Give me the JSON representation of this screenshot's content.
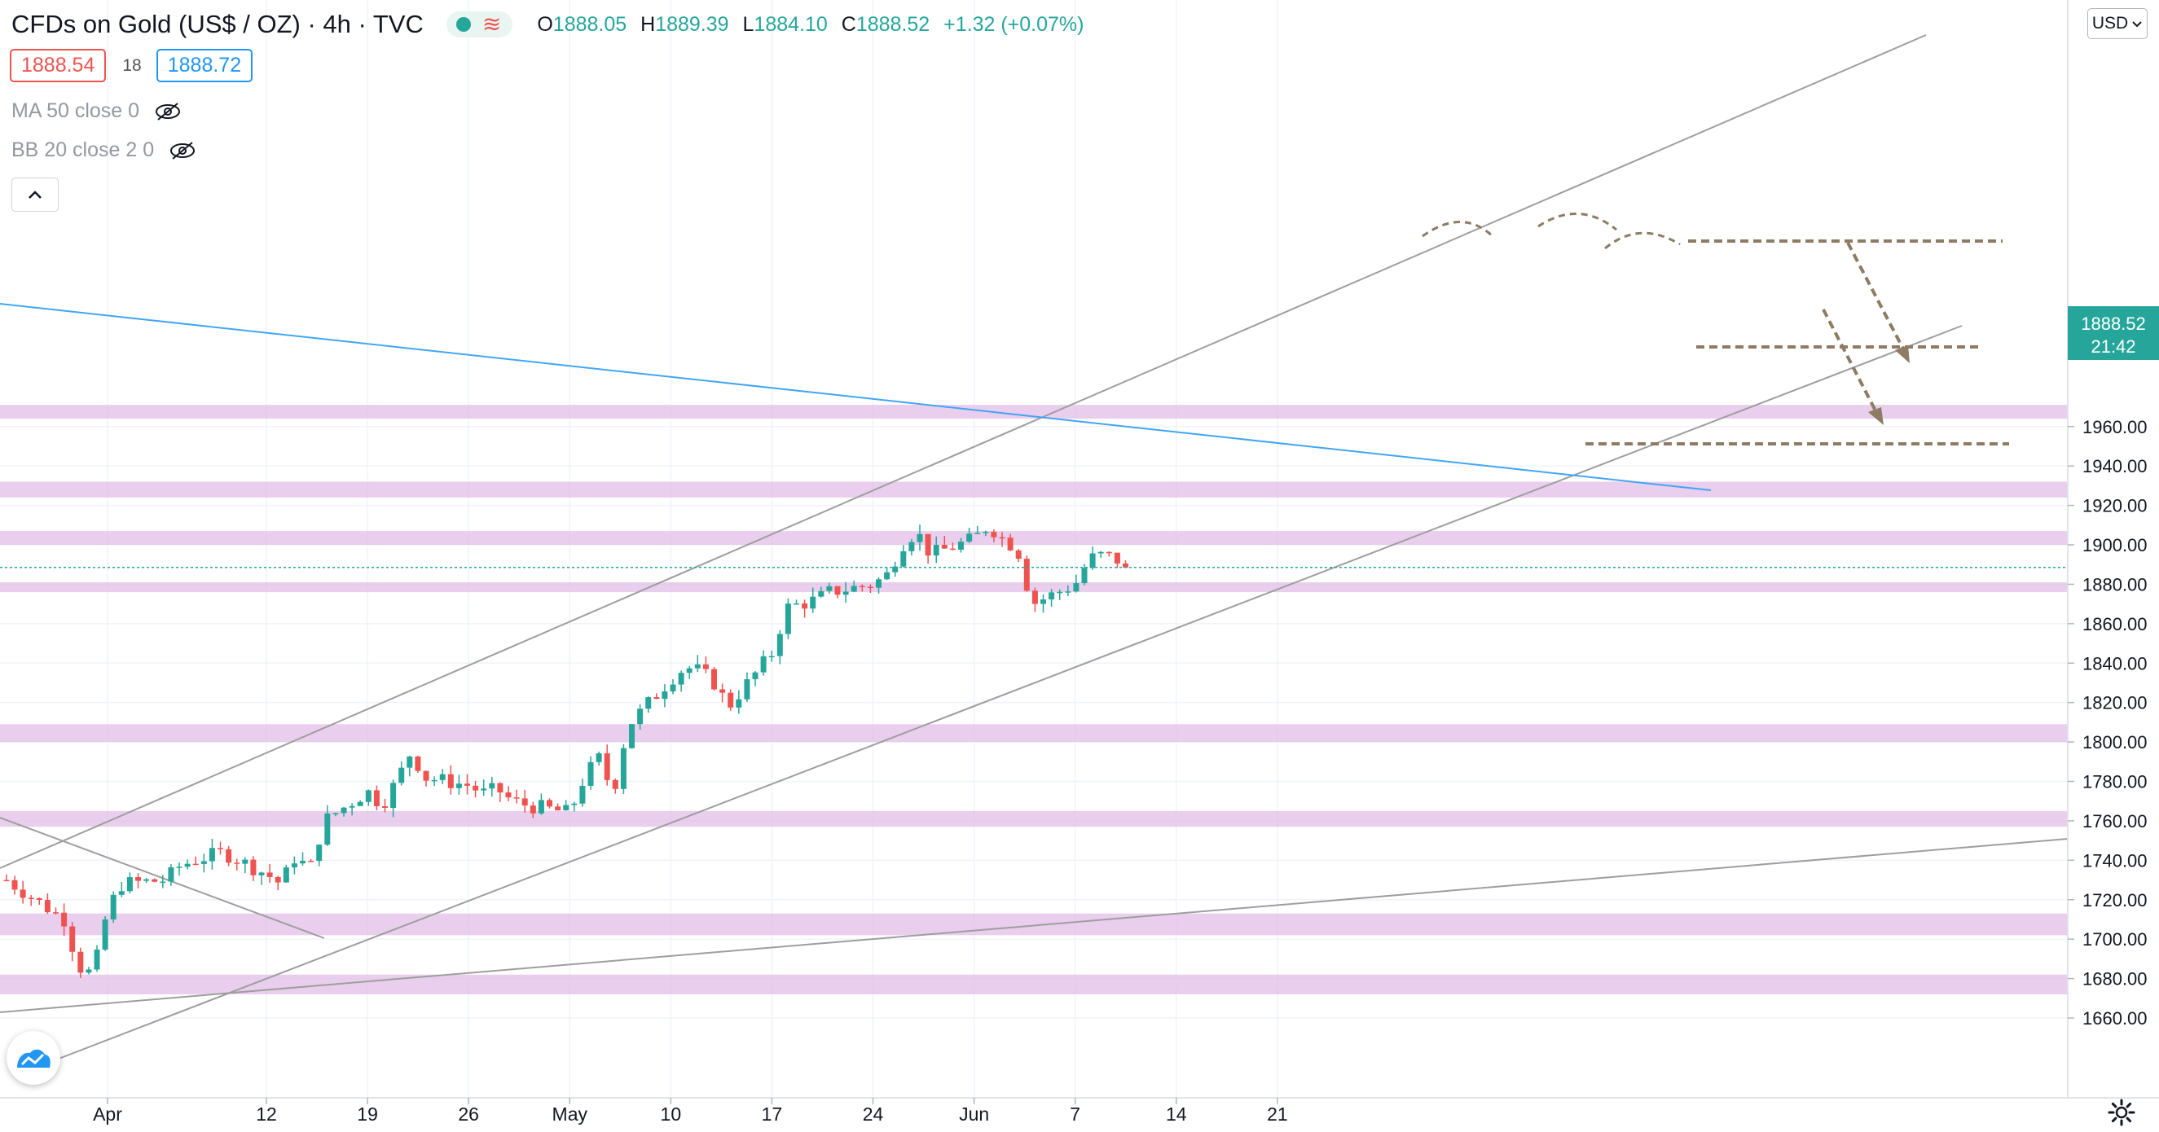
{
  "header": {
    "title": "CFDs on Gold (US$ / OZ) · 4h · TVC",
    "ohlc": [
      {
        "label": "O",
        "value": "1888.05"
      },
      {
        "label": "H",
        "value": "1889.39"
      },
      {
        "label": "L",
        "value": "1884.10"
      },
      {
        "label": "C",
        "value": "1888.52"
      }
    ],
    "change": "+1.32 (+0.07%)"
  },
  "trade": {
    "sell": "1888.54",
    "spread": "18",
    "buy": "1888.72"
  },
  "indicators": [
    {
      "label": "MA 50 close 0",
      "icon": "eye-crossed-icon"
    },
    {
      "label": "BB 20 close 2 0",
      "icon": "eye-crossed-icon"
    }
  ],
  "currency": "USD",
  "last_price": {
    "value": "1888.52",
    "countdown": "21:42"
  },
  "colors": {
    "up": "#26a69a",
    "down": "#ef5350",
    "zone": "#e1bee7",
    "channel": "#9e9e9e",
    "blue_line": "#42a5f5",
    "annotation": "#8d7b63"
  },
  "chart_data": {
    "type": "candlestick",
    "title": "CFDs on Gold (US$ / OZ)",
    "interval": "4h",
    "x_range": [
      "2021-03-25",
      "2021-06-21"
    ],
    "ylim": [
      1655,
      1985
    ],
    "y_ticks": [
      1660,
      1680,
      1700,
      1720,
      1740,
      1760,
      1780,
      1800,
      1820,
      1840,
      1860,
      1880,
      1900,
      1920,
      1940,
      1960
    ],
    "y_tick_labels": [
      "1660.00",
      "1680.00",
      "1700.00",
      "1720.00",
      "1740.00",
      "1760.00",
      "1780.00",
      "1800.00",
      "1820.00",
      "1840.00",
      "1860.00",
      "1880.00",
      "1900.00",
      "1920.00",
      "1940.00",
      "1960.00"
    ],
    "x_ticks": [
      {
        "label": "Apr",
        "date": "2021-04-01"
      },
      {
        "label": "12",
        "date": "2021-04-12"
      },
      {
        "label": "19",
        "date": "2021-04-19"
      },
      {
        "label": "26",
        "date": "2021-04-26"
      },
      {
        "label": "May",
        "date": "2021-05-03"
      },
      {
        "label": "10",
        "date": "2021-05-10"
      },
      {
        "label": "17",
        "date": "2021-05-17"
      },
      {
        "label": "24",
        "date": "2021-05-24"
      },
      {
        "label": "Jun",
        "date": "2021-05-31"
      },
      {
        "label": "7",
        "date": "2021-06-07"
      },
      {
        "label": "14",
        "date": "2021-06-14"
      },
      {
        "label": "21",
        "date": "2021-06-21"
      }
    ],
    "zones": [
      [
        1672,
        1682
      ],
      [
        1702,
        1713
      ],
      [
        1757,
        1765
      ],
      [
        1800,
        1809
      ],
      [
        1876,
        1881
      ],
      [
        1900,
        1907
      ],
      [
        1924,
        1932
      ],
      [
        1964,
        1971
      ]
    ],
    "close_path": [
      {
        "date": "2021-03-25",
        "price": 1730
      },
      {
        "date": "2021-03-26",
        "price": 1725
      },
      {
        "date": "2021-03-29",
        "price": 1710
      },
      {
        "date": "2021-03-30",
        "price": 1686
      },
      {
        "date": "2021-03-31",
        "price": 1682
      },
      {
        "date": "2021-04-01",
        "price": 1715
      },
      {
        "date": "2021-04-02",
        "price": 1728
      },
      {
        "date": "2021-04-05",
        "price": 1730
      },
      {
        "date": "2021-04-06",
        "price": 1737
      },
      {
        "date": "2021-04-07",
        "price": 1740
      },
      {
        "date": "2021-04-08",
        "price": 1742
      },
      {
        "date": "2021-04-09",
        "price": 1744
      },
      {
        "date": "2021-04-12",
        "price": 1733
      },
      {
        "date": "2021-04-13",
        "price": 1728
      },
      {
        "date": "2021-04-14",
        "price": 1742
      },
      {
        "date": "2021-04-15",
        "price": 1735
      },
      {
        "date": "2021-04-16",
        "price": 1760
      },
      {
        "date": "2021-04-19",
        "price": 1775
      },
      {
        "date": "2021-04-20",
        "price": 1768
      },
      {
        "date": "2021-04-21",
        "price": 1780
      },
      {
        "date": "2021-04-22",
        "price": 1795
      },
      {
        "date": "2021-04-23",
        "price": 1782
      },
      {
        "date": "2021-04-26",
        "price": 1778
      },
      {
        "date": "2021-04-27",
        "price": 1774
      },
      {
        "date": "2021-04-28",
        "price": 1776
      },
      {
        "date": "2021-04-29",
        "price": 1770
      },
      {
        "date": "2021-04-30",
        "price": 1768
      },
      {
        "date": "2021-05-03",
        "price": 1764
      },
      {
        "date": "2021-05-04",
        "price": 1782
      },
      {
        "date": "2021-05-05",
        "price": 1792
      },
      {
        "date": "2021-05-06",
        "price": 1774
      },
      {
        "date": "2021-05-07",
        "price": 1808
      },
      {
        "date": "2021-05-10",
        "price": 1832
      },
      {
        "date": "2021-05-11",
        "price": 1838
      },
      {
        "date": "2021-05-12",
        "price": 1836
      },
      {
        "date": "2021-05-13",
        "price": 1830
      },
      {
        "date": "2021-05-14",
        "price": 1818
      },
      {
        "date": "2021-05-17",
        "price": 1845
      },
      {
        "date": "2021-05-18",
        "price": 1868
      },
      {
        "date": "2021-05-19",
        "price": 1870
      },
      {
        "date": "2021-05-20",
        "price": 1872
      },
      {
        "date": "2021-05-21",
        "price": 1876
      },
      {
        "date": "2021-05-24",
        "price": 1880
      },
      {
        "date": "2021-05-25",
        "price": 1885
      },
      {
        "date": "2021-05-26",
        "price": 1900
      },
      {
        "date": "2021-05-27",
        "price": 1907
      },
      {
        "date": "2021-05-28",
        "price": 1895
      },
      {
        "date": "2021-05-31",
        "price": 1903
      },
      {
        "date": "2021-06-01",
        "price": 1910
      },
      {
        "date": "2021-06-02",
        "price": 1903
      },
      {
        "date": "2021-06-03",
        "price": 1898
      },
      {
        "date": "2021-06-04",
        "price": 1870
      },
      {
        "date": "2021-06-07",
        "price": 1880
      },
      {
        "date": "2021-06-08",
        "price": 1893
      },
      {
        "date": "2021-06-09",
        "price": 1895
      },
      {
        "date": "2021-06-10",
        "price": 1892
      },
      {
        "date": "2021-06-11",
        "price": 1888
      }
    ],
    "last_price": 1888.52
  }
}
